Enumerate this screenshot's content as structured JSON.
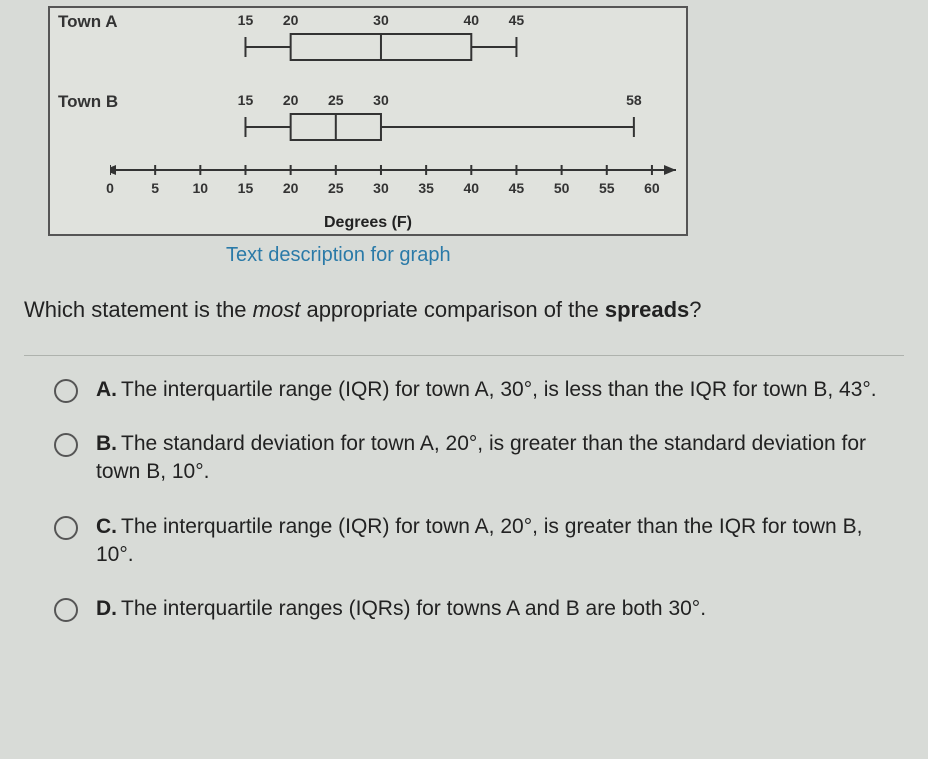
{
  "graph": {
    "townA": {
      "label": "Town A",
      "min": 15,
      "q1": 20,
      "med": 30,
      "q3": 40,
      "max": 45,
      "valueLabels": [
        15,
        20,
        30,
        40,
        45
      ]
    },
    "townB": {
      "label": "Town B",
      "min": 15,
      "q1": 20,
      "med": 25,
      "q3": 30,
      "max": 58,
      "valueLabels": [
        15,
        20,
        25,
        30,
        58
      ]
    },
    "axis": {
      "min": 0,
      "max": 62,
      "ticks": [
        0,
        5,
        10,
        15,
        20,
        25,
        30,
        35,
        40,
        45,
        50,
        55,
        60
      ],
      "label": "Degrees (F)"
    },
    "colors": {
      "stroke": "#333333",
      "fill": "#e0e2dd",
      "background": "#e0e2dd"
    },
    "boxHeight": 26,
    "whiskerTick": 10
  },
  "link": "Text description for graph",
  "question": {
    "pre": "Which statement is the ",
    "em": "most",
    "post": " appropriate comparison of the ",
    "strong": "spreads",
    "end": "?"
  },
  "options": {
    "A": "The interquartile range (IQR) for town A, 30°, is less than the IQR for town B, 43°.",
    "B": "The standard deviation for town A, 20°, is greater than the standard deviation for town B, 10°.",
    "C": "The interquartile range (IQR) for town A, 20°, is greater than the IQR for town B, 10°.",
    "D": "The interquartile ranges (IQRs) for towns A and B are both 30°."
  }
}
